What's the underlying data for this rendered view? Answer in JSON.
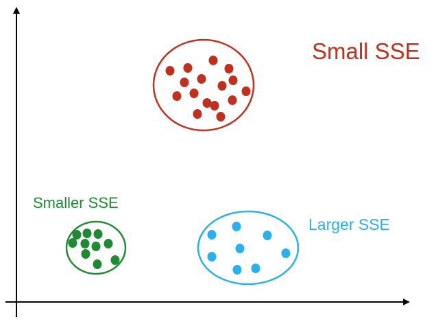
{
  "colors": {
    "axis": "#000000",
    "red": "#c0301f",
    "green": "#1f8a33",
    "blue": "#2ab0ea"
  },
  "labels": {
    "red": "Small SSE",
    "green": "Smaller SSE",
    "blue": "Larger SSE"
  },
  "clusters": [
    {
      "name": "red-cluster",
      "color_key": "red",
      "point_count": 16
    },
    {
      "name": "green-cluster",
      "color_key": "green",
      "point_count": 10
    },
    {
      "name": "blue-cluster",
      "color_key": "blue",
      "point_count": 9
    }
  ]
}
